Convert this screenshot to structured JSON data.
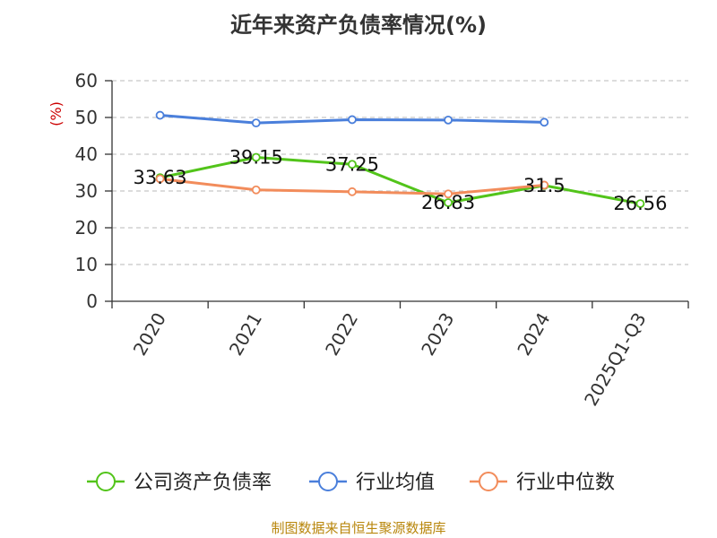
{
  "chart_data": {
    "type": "line",
    "title": "近年来资产负债率情况(%)",
    "ylabel": "(%)",
    "xlabel": "",
    "categories": [
      "2020",
      "2021",
      "2022",
      "2023",
      "2024",
      "2025Q1-Q3"
    ],
    "ylim": [
      0,
      60
    ],
    "yticks": [
      0,
      10,
      20,
      30,
      40,
      50,
      60
    ],
    "grid": true,
    "legend_position": "bottom",
    "series": [
      {
        "name": "公司资产负债率",
        "color": "#52c41a",
        "values": [
          33.63,
          39.15,
          37.25,
          26.83,
          31.5,
          26.56
        ],
        "labels": [
          "33.63",
          "39.15",
          "37.25",
          "26.83",
          "31.5",
          "26.56"
        ]
      },
      {
        "name": "行业均值",
        "color": "#4a7fdb",
        "values": [
          50.6,
          48.5,
          49.4,
          49.3,
          48.7,
          null
        ]
      },
      {
        "name": "行业中位数",
        "color": "#f28c5b",
        "values": [
          33.3,
          30.3,
          29.8,
          29.2,
          31.6,
          null
        ]
      }
    ]
  },
  "footer": {
    "source": "制图数据来自恒生聚源数据库"
  }
}
